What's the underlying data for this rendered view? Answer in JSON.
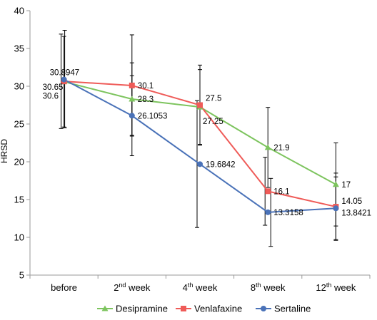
{
  "chart_data": {
    "type": "line",
    "categories": [
      {
        "main": "before",
        "sup": "",
        "rest": ""
      },
      {
        "main": "2",
        "sup": "nd",
        "rest": " week"
      },
      {
        "main": "4",
        "sup": "th",
        "rest": " week"
      },
      {
        "main": "8",
        "sup": "th",
        "rest": " week"
      },
      {
        "main": "12",
        "sup": "th",
        "rest": " week"
      }
    ],
    "ylabel": "HRSD",
    "xlabel": "",
    "ylim": [
      5,
      40
    ],
    "yticks": [
      5,
      10,
      15,
      20,
      25,
      30,
      35,
      40
    ],
    "grid": false,
    "legend_position": "bottom",
    "series": [
      {
        "name": "Desipramine",
        "color": "#7dc45e",
        "marker": "triangle",
        "values": [
          30.6,
          28.3,
          27.25,
          21.9,
          17
        ],
        "labels": [
          "30.6",
          "28.3",
          "27.25",
          "21.9",
          "17"
        ],
        "error_low": [
          24.6,
          23.5,
          22.3,
          16.6,
          11.5
        ],
        "error_high": [
          36.6,
          33.1,
          32.2,
          27.2,
          22.5
        ]
      },
      {
        "name": "Venlafaxine",
        "color": "#ef5b58",
        "marker": "square",
        "values": [
          30.65,
          30.1,
          27.5,
          16.1,
          14.05
        ],
        "labels": [
          "30.65",
          "30.1",
          "27.5",
          "16.1",
          "14.05"
        ],
        "error_low": [
          24.4,
          23.4,
          22.2,
          11.6,
          9.6
        ],
        "error_high": [
          36.9,
          36.8,
          32.8,
          20.6,
          18.5
        ]
      },
      {
        "name": "Sertaline",
        "color": "#4a72b8",
        "marker": "circle",
        "values": [
          30.8947,
          26.1053,
          19.6842,
          13.3158,
          13.8421
        ],
        "labels": [
          "30.8947",
          "26.1053",
          "19.6842",
          "13.3158",
          "13.8421"
        ],
        "error_low": [
          24.5,
          20.8,
          11.3,
          8.8,
          9.7
        ],
        "error_high": [
          37.4,
          31.4,
          28.1,
          17.8,
          18.0
        ]
      }
    ]
  }
}
